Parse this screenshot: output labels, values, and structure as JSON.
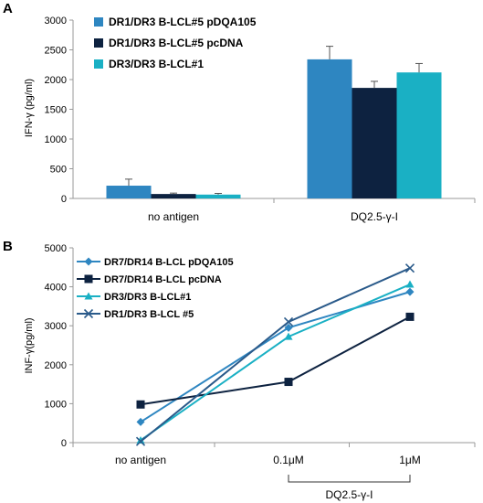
{
  "chart_data": [
    {
      "panel": "A",
      "type": "bar",
      "ylabel": "IFN-γ (pg/ml)",
      "ylim": [
        0,
        3000
      ],
      "yticks": [
        0,
        500,
        1000,
        1500,
        2000,
        2500,
        3000
      ],
      "categories": [
        "no antigen",
        "DQ2.5-γ-I"
      ],
      "legend_position": "top-left",
      "series": [
        {
          "name": "DR1/DR3 B-LCL#5 pDQA105",
          "color": "#2e86c1",
          "values": [
            215,
            2340
          ],
          "errors": [
            110,
            220
          ]
        },
        {
          "name": "DR1/DR3 B-LCL#5 pcDNA",
          "color": "#0d2240",
          "values": [
            75,
            1860
          ],
          "errors": [
            15,
            110
          ]
        },
        {
          "name": "DR3/DR3 B-LCL#1",
          "color": "#1ab0c4",
          "values": [
            65,
            2120
          ],
          "errors": [
            20,
            150
          ]
        }
      ]
    },
    {
      "panel": "B",
      "type": "line",
      "ylabel": "INF-γ(pg/ml)",
      "ylim": [
        0,
        5000
      ],
      "yticks": [
        0,
        1000,
        2000,
        3000,
        4000,
        5000
      ],
      "categories": [
        "no antigen",
        "0.1μM",
        "1μM"
      ],
      "group_label": "DQ2.5-γ-I",
      "legend_position": "top-left",
      "series": [
        {
          "name": "DR7/DR14 B-LCL pDQA105",
          "color": "#2e86c1",
          "marker": "diamond",
          "values": [
            530,
            2950,
            3870
          ]
        },
        {
          "name": "DR7/DR14  B-LCL pcDNA",
          "color": "#0d2240",
          "marker": "square",
          "values": [
            980,
            1560,
            3230
          ]
        },
        {
          "name": "DR3/DR3 B-LCL#1",
          "color": "#1ab0c4",
          "marker": "triangle",
          "values": [
            60,
            2720,
            4060
          ]
        },
        {
          "name": "DR1/DR3 B-LCL #5",
          "color": "#2a5a8a",
          "marker": "x",
          "values": [
            30,
            3100,
            4480
          ]
        }
      ]
    }
  ]
}
